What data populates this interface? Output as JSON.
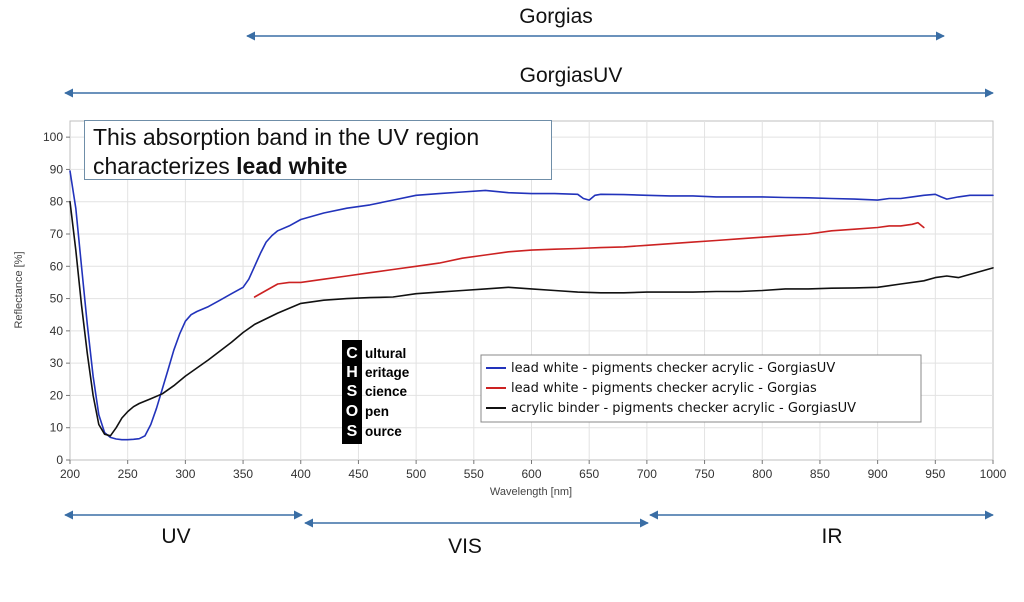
{
  "chart_data": {
    "type": "line",
    "xlabel": "Wavelength [nm]",
    "ylabel": "Reflectance [%]",
    "xlim": [
      200,
      1000
    ],
    "ylim": [
      0,
      105
    ],
    "xticks": [
      200,
      250,
      300,
      350,
      400,
      450,
      500,
      550,
      600,
      650,
      700,
      750,
      800,
      850,
      900,
      950,
      1000
    ],
    "yticks": [
      0,
      10,
      20,
      30,
      40,
      50,
      60,
      70,
      80,
      90,
      100
    ],
    "grid": true,
    "legend_position": "lower-right",
    "series": [
      {
        "name": "lead white - pigments checker acrylic - GorgiasUV",
        "color": "#2233bb",
        "x": [
          200,
          205,
          210,
          215,
          220,
          225,
          230,
          235,
          240,
          245,
          250,
          255,
          260,
          265,
          270,
          275,
          280,
          285,
          290,
          295,
          300,
          305,
          310,
          320,
          330,
          340,
          350,
          355,
          360,
          365,
          370,
          375,
          380,
          390,
          400,
          420,
          440,
          460,
          480,
          500,
          520,
          540,
          560,
          580,
          600,
          620,
          640,
          645,
          650,
          655,
          660,
          680,
          700,
          720,
          740,
          760,
          780,
          800,
          820,
          840,
          860,
          880,
          900,
          910,
          920,
          930,
          940,
          950,
          955,
          960,
          970,
          980,
          990,
          1000
        ],
        "y": [
          89.5,
          78,
          60,
          42,
          26,
          14,
          8.5,
          7,
          6.5,
          6.3,
          6.3,
          6.4,
          6.6,
          7.5,
          11,
          16,
          22,
          28,
          34,
          39,
          43,
          45,
          46,
          47.5,
          49.5,
          51.5,
          53.5,
          56,
          60,
          64,
          67.5,
          69.5,
          71,
          72.5,
          74.5,
          76.5,
          78,
          79,
          80.5,
          82,
          82.5,
          83,
          83.5,
          82.8,
          82.5,
          82.5,
          82.3,
          81,
          80.5,
          82,
          82.3,
          82.2,
          82,
          81.8,
          81.8,
          81.5,
          81.5,
          81.5,
          81.3,
          81.2,
          81,
          80.8,
          80.5,
          81,
          81,
          81.5,
          82,
          82.3,
          81.5,
          80.8,
          81.5,
          82,
          82,
          82
        ]
      },
      {
        "name": "lead white - pigments checker acrylic - Gorgias",
        "color": "#cc2222",
        "x": [
          360,
          370,
          380,
          390,
          400,
          420,
          440,
          460,
          480,
          500,
          520,
          540,
          560,
          580,
          600,
          620,
          640,
          660,
          680,
          700,
          720,
          740,
          760,
          780,
          800,
          820,
          840,
          860,
          880,
          900,
          910,
          920,
          930,
          935,
          940
        ],
        "y": [
          50.5,
          52.5,
          54.5,
          55,
          55,
          56,
          57,
          58,
          59,
          60,
          61,
          62.5,
          63.5,
          64.5,
          65,
          65.3,
          65.5,
          65.8,
          66,
          66.5,
          67,
          67.5,
          68,
          68.5,
          69,
          69.5,
          70,
          71,
          71.5,
          72,
          72.5,
          72.5,
          73,
          73.5,
          72
        ]
      },
      {
        "name": "acrylic binder - pigments checker acrylic - GorgiasUV",
        "color": "#111111",
        "x": [
          200,
          205,
          210,
          215,
          220,
          225,
          230,
          235,
          240,
          245,
          250,
          255,
          260,
          270,
          280,
          290,
          300,
          320,
          340,
          350,
          360,
          380,
          400,
          420,
          440,
          460,
          480,
          500,
          520,
          540,
          560,
          580,
          600,
          620,
          640,
          660,
          680,
          700,
          720,
          740,
          760,
          780,
          800,
          820,
          840,
          860,
          880,
          900,
          920,
          940,
          950,
          960,
          970,
          980,
          990,
          1000
        ],
        "y": [
          80,
          65,
          48,
          33,
          20,
          11,
          8,
          7.5,
          10,
          13,
          15,
          16.5,
          17.5,
          19,
          20.5,
          23,
          26,
          31,
          36.5,
          39.5,
          42,
          45.5,
          48.5,
          49.5,
          50,
          50.3,
          50.5,
          51.5,
          52,
          52.5,
          53,
          53.5,
          53,
          52.5,
          52,
          51.8,
          51.8,
          52,
          52,
          52,
          52.2,
          52.2,
          52.5,
          53,
          53,
          53.2,
          53.3,
          53.5,
          54.5,
          55.5,
          56.5,
          57,
          56.5,
          57.5,
          58.5,
          59.5
        ]
      }
    ]
  },
  "annotation": {
    "line1": "This absorption band in the UV region",
    "line2_prefix": "characterizes ",
    "line2_bold": "lead white"
  },
  "instrument_ranges": {
    "gorgias": "Gorgias",
    "gorgias_uv": "GorgiasUV"
  },
  "spectral_regions": {
    "uv": "UV",
    "vis": "VIS",
    "ir": "IR"
  },
  "logo": {
    "letters": [
      "C",
      "H",
      "S",
      "O",
      "S"
    ],
    "words": [
      "ultural",
      "eritage",
      "cience",
      "pen",
      "ource"
    ]
  }
}
